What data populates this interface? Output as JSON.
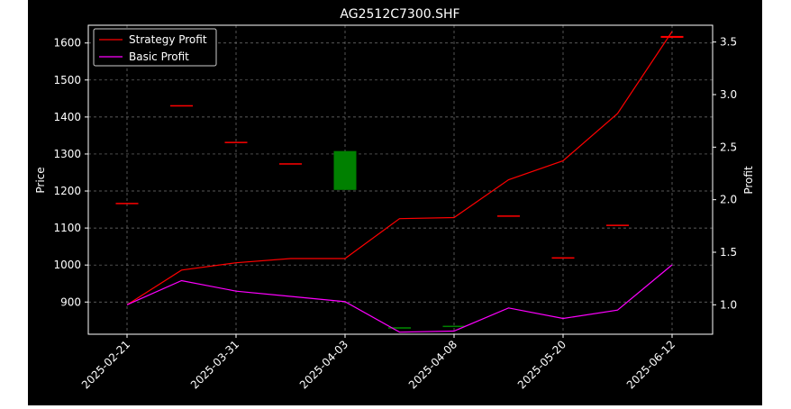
{
  "chart_data": {
    "type": "line",
    "title": "AG2512C7300.SHF",
    "ylabel_left": "Price",
    "ylabel_right": "Profit",
    "grid": true,
    "legend_position": "top-left",
    "x_tick_labels": [
      "2025-02-21",
      "2025-03-31",
      "2025-04-03",
      "2025-04-08",
      "2025-05-20",
      "2025-06-12"
    ],
    "x_tick_index": [
      0,
      2,
      4,
      6,
      8,
      10
    ],
    "y_left_ticks": [
      900,
      1000,
      1100,
      1200,
      1300,
      1400,
      1500,
      1600
    ],
    "y_left_range": [
      813,
      1648
    ],
    "y_right_ticks": [
      1.0,
      1.5,
      2.0,
      2.5,
      3.0,
      3.5
    ],
    "y_right_range": [
      0.72,
      3.66
    ],
    "candles": [
      {
        "i": 0,
        "open": 1168,
        "close": 1168,
        "color": "#ff0000"
      },
      {
        "i": 1,
        "open": 1432,
        "close": 1432,
        "color": "#ff0000"
      },
      {
        "i": 2,
        "open": 1333,
        "close": 1333,
        "color": "#ff0000"
      },
      {
        "i": 3,
        "open": 1275,
        "close": 1275,
        "color": "#ff0000"
      },
      {
        "i": 4,
        "open": 1203,
        "close": 1308,
        "color": "#008000"
      },
      {
        "i": 5,
        "open": 828,
        "close": 832,
        "color": "#008000"
      },
      {
        "i": 6,
        "open": 836,
        "close": 836,
        "color": "#008000"
      },
      {
        "i": 7,
        "open": 1134,
        "close": 1134,
        "color": "#ff0000"
      },
      {
        "i": 8,
        "open": 1021,
        "close": 1021,
        "color": "#ff0000"
      },
      {
        "i": 9,
        "open": 1109,
        "close": 1109,
        "color": "#ff0000"
      },
      {
        "i": 10,
        "open": 1614,
        "close": 1619,
        "color": "#ff0000"
      }
    ],
    "series": [
      {
        "name": "Strategy Profit",
        "color": "#ff0000",
        "values": [
          1.0,
          1.33,
          1.4,
          1.44,
          1.44,
          1.82,
          1.83,
          2.19,
          2.37,
          2.82,
          3.6
        ]
      },
      {
        "name": "Basic Profit",
        "color": "#ff00ff",
        "values": [
          1.0,
          1.23,
          1.13,
          1.08,
          1.03,
          0.74,
          0.75,
          0.97,
          0.87,
          0.95,
          1.38
        ]
      }
    ]
  }
}
